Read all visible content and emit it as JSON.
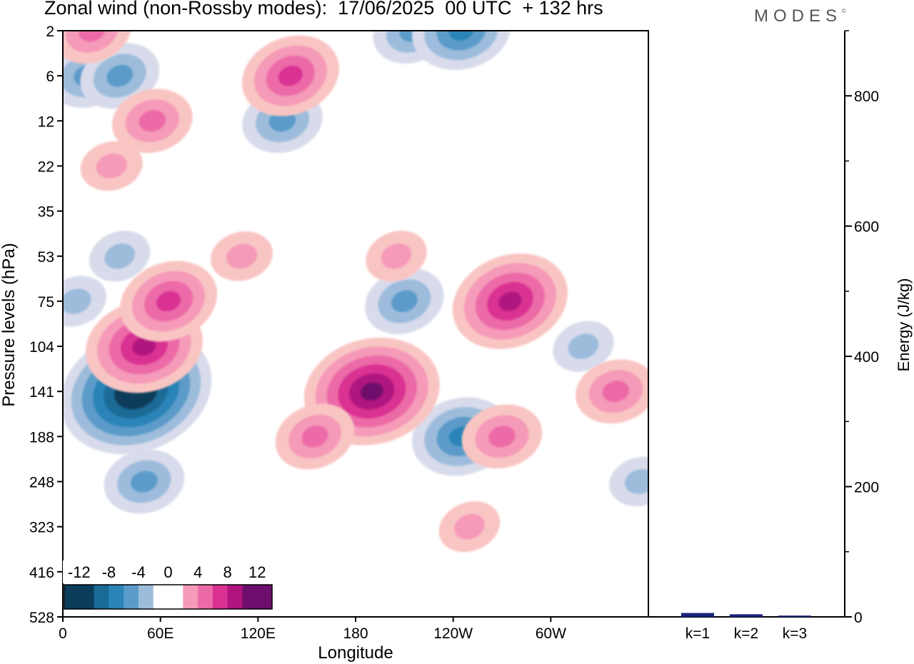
{
  "header": {
    "title": "Zonal wind (non-Rossby modes):  17/06/2025  00 UTC  + 132 hrs",
    "logo": "MODES"
  },
  "colors": {
    "neg12": "#0b3d5a",
    "neg10": "#1a6b96",
    "neg8": "#2b84b8",
    "neg6": "#5b9bc9",
    "neg4": "#9dbcdc",
    "neg2": "#d8dbeb",
    "zero": "#ffffff",
    "pos2": "#f9c5c3",
    "pos4": "#f59ab8",
    "pos6": "#ec6aa7",
    "pos8": "#d93192",
    "pos10": "#b0157f",
    "pos12": "#6e0e6c",
    "energy_bar": "#1a237e"
  },
  "chart_data": [
    {
      "type": "heatmap",
      "title": "Zonal wind (non-Rossby modes):  17/06/2025  00 UTC  + 132 hrs",
      "xlabel": "Longitude",
      "ylabel": "Pressure levels (hPa)",
      "x_ticks": [
        "0",
        "60E",
        "120E",
        "180",
        "120W",
        "60W"
      ],
      "x_tick_values": [
        0,
        60,
        120,
        180,
        240,
        300
      ],
      "xlim": [
        0,
        360
      ],
      "y_ticks": [
        "2",
        "6",
        "12",
        "22",
        "35",
        "53",
        "75",
        "104",
        "141",
        "188",
        "248",
        "323",
        "416",
        "528"
      ],
      "colorbar_ticks": [
        "-12",
        "-8",
        "-4",
        "0",
        "4",
        "8",
        "12"
      ],
      "levels": [
        -12,
        -10,
        -8,
        -6,
        -4,
        -2,
        0,
        2,
        4,
        6,
        8,
        10,
        12
      ],
      "features": [
        {
          "lon": 45,
          "level": "141",
          "value": -13
        },
        {
          "lon": 50,
          "level": "248",
          "value": -5
        },
        {
          "lon": 35,
          "level": "53",
          "value": -4
        },
        {
          "lon": 15,
          "level": "6",
          "value": -6
        },
        {
          "lon": 35,
          "level": "6",
          "value": -5
        },
        {
          "lon": 135,
          "level": "12",
          "value": -5
        },
        {
          "lon": 215,
          "level": "2",
          "value": -6
        },
        {
          "lon": 245,
          "level": "2",
          "value": -7
        },
        {
          "lon": 210,
          "level": "75",
          "value": -6
        },
        {
          "lon": 245,
          "level": "188",
          "value": -8
        },
        {
          "lon": 320,
          "level": "104",
          "value": -4
        },
        {
          "lon": 355,
          "level": "248",
          "value": -4
        },
        {
          "lon": 8,
          "level": "75",
          "value": -4
        },
        {
          "lon": 50,
          "level": "104",
          "value": 9
        },
        {
          "lon": 65,
          "level": "75",
          "value": 8
        },
        {
          "lon": 190,
          "level": "141",
          "value": 12
        },
        {
          "lon": 155,
          "level": "188",
          "value": 5
        },
        {
          "lon": 270,
          "level": "188",
          "value": 6
        },
        {
          "lon": 275,
          "level": "75",
          "value": 9
        },
        {
          "lon": 340,
          "level": "141",
          "value": 5
        },
        {
          "lon": 140,
          "level": "6",
          "value": 8
        },
        {
          "lon": 55,
          "level": "12",
          "value": 6
        },
        {
          "lon": 18,
          "level": "2",
          "value": 5
        },
        {
          "lon": 30,
          "level": "22",
          "value": 4
        },
        {
          "lon": 250,
          "level": "323",
          "value": 4
        },
        {
          "lon": 110,
          "level": "53",
          "value": 3
        },
        {
          "lon": 205,
          "level": "53",
          "value": 3
        }
      ]
    },
    {
      "type": "bar",
      "ylabel": "Energy (J/kg)",
      "categories": [
        "k=1",
        "k=2",
        "k=3"
      ],
      "values": [
        6,
        4,
        2
      ],
      "ylim": [
        0,
        900
      ],
      "y_ticks": [
        "0",
        "200",
        "400",
        "600",
        "800"
      ],
      "y_tick_values": [
        0,
        200,
        400,
        600,
        800
      ]
    }
  ]
}
